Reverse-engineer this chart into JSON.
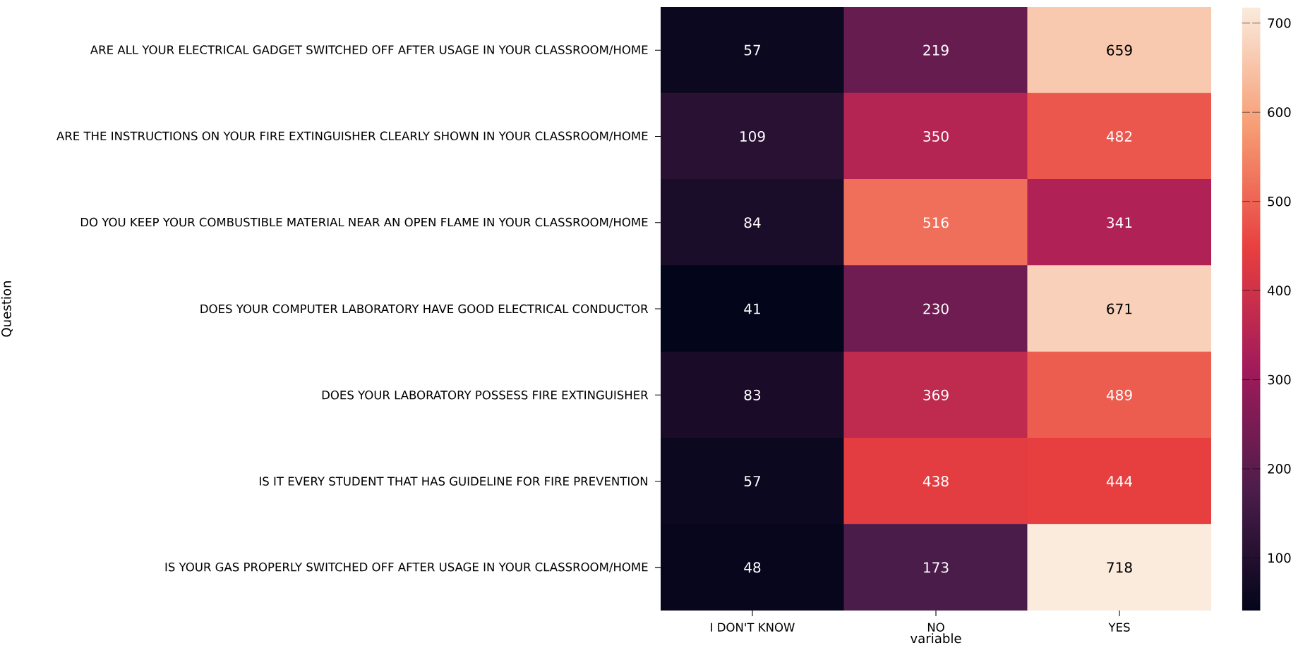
{
  "chart_data": {
    "type": "heatmap",
    "xlabel": "variable",
    "ylabel": "Question",
    "categories": [
      "I DON'T KNOW",
      "NO",
      "YES"
    ],
    "y_categories": [
      "ARE ALL YOUR ELECTRICAL GADGET SWITCHED OFF AFTER USAGE IN YOUR CLASSROOM/HOME",
      "ARE THE INSTRUCTIONS ON YOUR FIRE EXTINGUISHER CLEARLY SHOWN IN YOUR CLASSROOM/HOME",
      "DO YOU KEEP YOUR COMBUSTIBLE MATERIAL NEAR AN OPEN FLAME IN YOUR CLASSROOM/HOME",
      "DOES YOUR COMPUTER LABORATORY HAVE GOOD ELECTRICAL CONDUCTOR",
      "DOES YOUR LABORATORY POSSESS FIRE EXTINGUISHER",
      "IS IT EVERY STUDENT THAT HAS GUIDELINE FOR FIRE PREVENTION",
      "IS YOUR GAS PROPERLY SWITCHED OFF AFTER USAGE IN YOUR CLASSROOM/HOME"
    ],
    "cells": [
      [
        57,
        219,
        659
      ],
      [
        109,
        350,
        482
      ],
      [
        84,
        516,
        341
      ],
      [
        41,
        230,
        671
      ],
      [
        83,
        369,
        489
      ],
      [
        57,
        438,
        444
      ],
      [
        48,
        173,
        718
      ]
    ],
    "data_labels": true,
    "clim": [
      41,
      718
    ],
    "cticks": [
      100,
      200,
      300,
      400,
      500,
      600,
      700
    ]
  }
}
